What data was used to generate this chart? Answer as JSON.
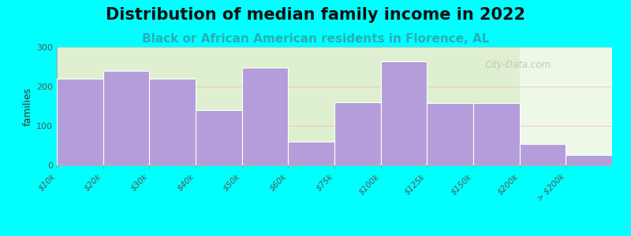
{
  "title": "Distribution of median family income in 2022",
  "subtitle": "Black or African American residents in Florence, AL",
  "ylabel": "families",
  "background_outer": "#00FFFF",
  "bar_color": "#b39ddb",
  "bar_edge_color": "#ffffff",
  "tick_labels": [
    "$10k",
    "$20k",
    "$30k",
    "$40k",
    "$50k",
    "$60k",
    "$75k",
    "$100k",
    "$125k",
    "$150k",
    "$200k",
    "> $200k"
  ],
  "bar_values": [
    220,
    240,
    220,
    140,
    248,
    60,
    160,
    265,
    158,
    158,
    55,
    27
  ],
  "ylim": [
    0,
    300
  ],
  "yticks": [
    0,
    100,
    200,
    300
  ],
  "title_fontsize": 15,
  "subtitle_fontsize": 11,
  "subtitle_color": "#2aacb8",
  "watermark": "City-Data.com",
  "bg_left_color": "#dff0d0",
  "bg_right_color": "#eef8e8",
  "grid_color": "#f0a0a0"
}
